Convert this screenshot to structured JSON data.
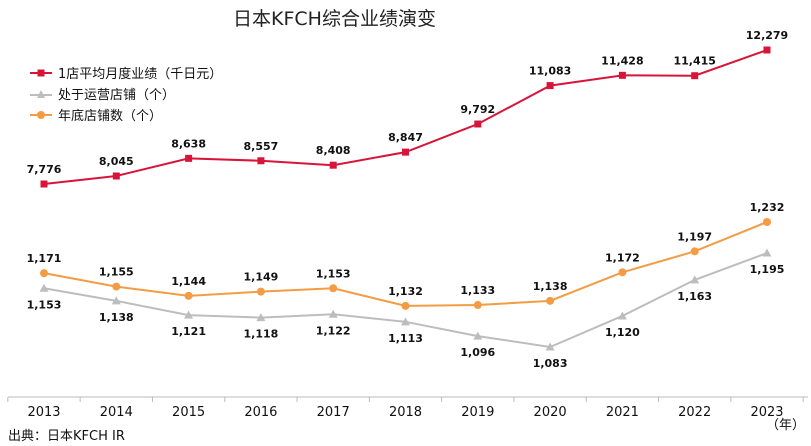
{
  "chart_data": {
    "type": "line",
    "title": "日本KFCH综合业绩演变",
    "categories": [
      "2013",
      "2014",
      "2015",
      "2016",
      "2017",
      "2018",
      "2019",
      "2020",
      "2021",
      "2022",
      "2023"
    ],
    "x_unit": "（年）",
    "source": "出典：日本KFCH IR",
    "grid": false,
    "legend_position": "top-left",
    "series": [
      {
        "name": "1店平均月度业绩（千日元）",
        "color": "#d9143a",
        "marker": "square",
        "values": [
          7776,
          8045,
          8638,
          8557,
          8408,
          8847,
          9792,
          11083,
          11428,
          11415,
          12279
        ],
        "labels": [
          "7,776",
          "8,045",
          "8,638",
          "8,557",
          "8,408",
          "8,847",
          "9,792",
          "11,083",
          "11,428",
          "11,415",
          "12,279"
        ]
      },
      {
        "name": "处于运营店铺（个）",
        "color": "#bdbdbd",
        "marker": "triangle",
        "values": [
          1153,
          1138,
          1121,
          1118,
          1122,
          1113,
          1096,
          1083,
          1120,
          1163,
          1195
        ],
        "labels": [
          "1,153",
          "1,138",
          "1,121",
          "1,118",
          "1,122",
          "1,113",
          "1,096",
          "1,083",
          "1,120",
          "1,163",
          "1,195"
        ]
      },
      {
        "name": "年底店铺数（个）",
        "color": "#f39c44",
        "marker": "circle",
        "values": [
          1171,
          1155,
          1144,
          1149,
          1153,
          1132,
          1133,
          1138,
          1172,
          1197,
          1232
        ],
        "labels": [
          "1,171",
          "1,155",
          "1,144",
          "1,149",
          "1,153",
          "1,132",
          "1,133",
          "1,138",
          "1,172",
          "1,197",
          "1,232"
        ]
      }
    ]
  }
}
